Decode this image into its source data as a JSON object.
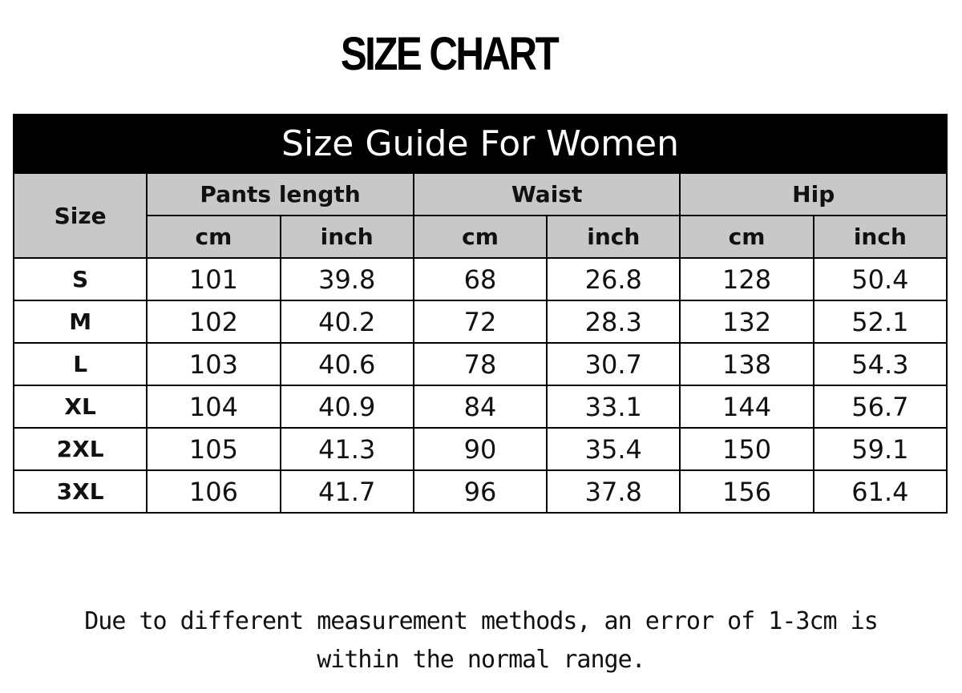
{
  "title": "SIZE CHART",
  "table": {
    "caption": "Size Guide For Women",
    "size_header": "Size",
    "groups": [
      "Pants length",
      "Waist",
      "Hip"
    ],
    "units": [
      "cm",
      "inch",
      "cm",
      "inch",
      "cm",
      "inch"
    ],
    "rows": [
      [
        "S",
        "101",
        "39.8",
        "68",
        "26.8",
        "128",
        "50.4"
      ],
      [
        "M",
        "102",
        "40.2",
        "72",
        "28.3",
        "132",
        "52.1"
      ],
      [
        "L",
        "103",
        "40.6",
        "78",
        "30.7",
        "138",
        "54.3"
      ],
      [
        "XL",
        "104",
        "40.9",
        "84",
        "33.1",
        "144",
        "56.7"
      ],
      [
        "2XL",
        "105",
        "41.3",
        "90",
        "35.4",
        "150",
        "59.1"
      ],
      [
        "3XL",
        "106",
        "41.7",
        "96",
        "37.8",
        "156",
        "61.4"
      ]
    ]
  },
  "note": {
    "line1": "Due to different measurement methods, an error of 1-3cm is",
    "line2": "within the normal range."
  },
  "colors": {
    "header_bg": "#c8c8c8",
    "banner_bg": "#000000"
  }
}
